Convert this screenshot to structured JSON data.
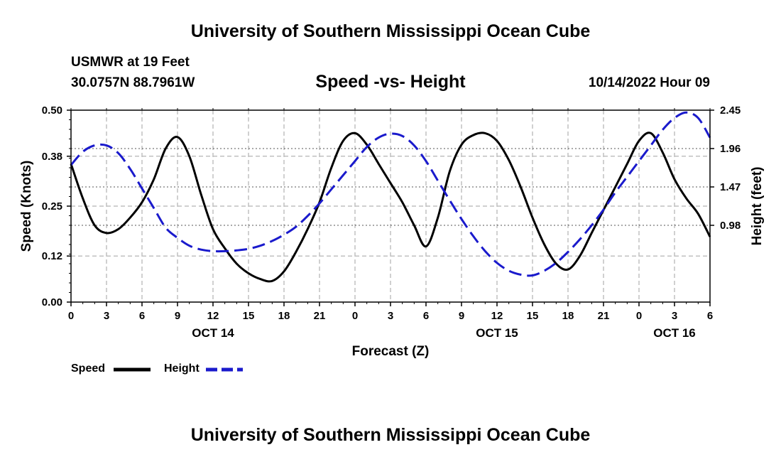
{
  "header": {
    "title": "University of Southern Mississippi Ocean Cube",
    "station": "USMWR at 19 Feet",
    "coordinates": "30.0757N  88.7961W",
    "datetime": "10/14/2022 Hour 09"
  },
  "footer": {
    "title": "University of Southern Mississippi Ocean Cube"
  },
  "legend": {
    "speed_label": "Speed",
    "height_label": "Height"
  },
  "colors": {
    "speed": "#000000",
    "height": "#1a1acc",
    "grid": "#c0c0c0"
  },
  "chart_data": {
    "type": "line",
    "title": "Speed -vs- Height",
    "xlabel": "Forecast (Z)",
    "ylabel": "Speed (Knots)",
    "y2label": "Height (feet)",
    "x_unit": "hours from Oct 14 00Z",
    "xlim": [
      0,
      54
    ],
    "ylim": [
      0,
      0.5
    ],
    "y2lim": [
      0.0,
      2.45
    ],
    "x_ticks": [
      0,
      3,
      6,
      9,
      12,
      15,
      18,
      21,
      24,
      27,
      30,
      33,
      36,
      39,
      42,
      45,
      48,
      51,
      54
    ],
    "x_tick_labels": [
      "0",
      "3",
      "6",
      "9",
      "12",
      "15",
      "18",
      "21",
      "0",
      "3",
      "6",
      "9",
      "12",
      "15",
      "18",
      "21",
      "0",
      "3",
      "6"
    ],
    "y_ticks": [
      0.0,
      0.12,
      0.25,
      0.38,
      0.5
    ],
    "y_tick_labels": [
      "0.00",
      "0.12",
      "0.25",
      "0.38",
      "0.50"
    ],
    "y2_ticks": [
      0.98,
      1.47,
      1.96,
      2.45
    ],
    "y2_tick_labels": [
      "0.98",
      "1.47",
      "1.96",
      "2.45"
    ],
    "day_labels": [
      {
        "x": 12,
        "label": "OCT 14"
      },
      {
        "x": 36,
        "label": "OCT 15"
      },
      {
        "x": 51,
        "label": "OCT 16"
      }
    ],
    "grid": true,
    "series": [
      {
        "name": "Speed",
        "axis": "left",
        "style": "solid",
        "x": [
          0,
          1,
          2,
          3,
          4,
          5,
          6,
          7,
          8,
          9,
          10,
          11,
          12,
          13,
          14,
          15,
          16,
          17,
          18,
          19,
          20,
          21,
          22,
          23,
          24,
          25,
          26,
          27,
          28,
          29,
          30,
          31,
          32,
          33,
          34,
          35,
          36,
          37,
          38,
          39,
          40,
          41,
          42,
          43,
          44,
          45,
          46,
          47,
          48,
          49,
          50,
          51,
          52,
          53,
          54
        ],
        "values": [
          0.36,
          0.27,
          0.2,
          0.18,
          0.19,
          0.22,
          0.26,
          0.32,
          0.4,
          0.43,
          0.38,
          0.28,
          0.19,
          0.14,
          0.1,
          0.075,
          0.06,
          0.055,
          0.08,
          0.13,
          0.19,
          0.26,
          0.35,
          0.42,
          0.44,
          0.41,
          0.36,
          0.31,
          0.26,
          0.2,
          0.145,
          0.22,
          0.34,
          0.41,
          0.435,
          0.44,
          0.42,
          0.37,
          0.3,
          0.22,
          0.15,
          0.1,
          0.085,
          0.12,
          0.18,
          0.24,
          0.3,
          0.36,
          0.42,
          0.44,
          0.39,
          0.32,
          0.27,
          0.23,
          0.17
        ]
      },
      {
        "name": "Height",
        "axis": "right",
        "style": "dashed",
        "x": [
          0,
          1,
          2,
          3,
          4,
          5,
          6,
          7,
          8,
          9,
          10,
          11,
          12,
          13,
          14,
          15,
          16,
          17,
          18,
          19,
          20,
          21,
          22,
          23,
          24,
          25,
          26,
          27,
          28,
          29,
          30,
          31,
          32,
          33,
          34,
          35,
          36,
          37,
          38,
          39,
          40,
          41,
          42,
          43,
          44,
          45,
          46,
          47,
          48,
          49,
          50,
          51,
          52,
          53,
          54
        ],
        "values": [
          1.75,
          1.92,
          2.0,
          2.0,
          1.9,
          1.7,
          1.45,
          1.2,
          0.95,
          0.82,
          0.72,
          0.67,
          0.65,
          0.65,
          0.66,
          0.68,
          0.72,
          0.78,
          0.86,
          0.96,
          1.1,
          1.26,
          1.44,
          1.62,
          1.8,
          1.98,
          2.1,
          2.15,
          2.12,
          2.0,
          1.8,
          1.55,
          1.3,
          1.06,
          0.84,
          0.65,
          0.5,
          0.4,
          0.35,
          0.34,
          0.4,
          0.5,
          0.64,
          0.8,
          0.98,
          1.18,
          1.4,
          1.6,
          1.8,
          2.0,
          2.2,
          2.35,
          2.42,
          2.35,
          2.1
        ]
      }
    ]
  }
}
